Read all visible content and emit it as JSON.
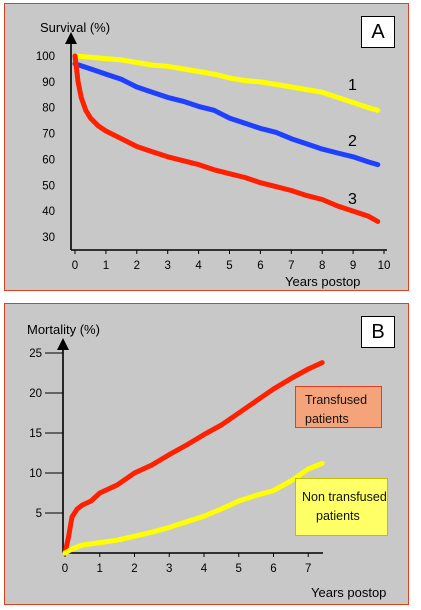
{
  "chart_data": [
    {
      "type": "line",
      "panel_label": "A",
      "ylabel": "Survival (%)",
      "xlabel": "Years postop",
      "xlim": [
        0,
        10
      ],
      "ylim": [
        30,
        100
      ],
      "x_ticks": [
        "0",
        "1",
        "2",
        "3",
        "4",
        "5",
        "6",
        "7",
        "8",
        "9",
        "10"
      ],
      "y_ticks": [
        "30",
        "40",
        "50",
        "60",
        "70",
        "80",
        "90",
        "100"
      ],
      "series": [
        {
          "name": "1",
          "color": "#ffff00",
          "x": [
            0,
            0.5,
            1,
            1.5,
            2,
            2.5,
            3,
            3.5,
            4,
            4.5,
            5,
            5.5,
            6,
            6.5,
            7,
            7.5,
            8,
            8.5,
            9,
            9.5,
            9.8
          ],
          "y": [
            100,
            99.5,
            99,
            98.5,
            97.5,
            96.5,
            96,
            95,
            94,
            93,
            91.5,
            90.5,
            90,
            89,
            88,
            87,
            86,
            84,
            82,
            80,
            79
          ]
        },
        {
          "name": "2",
          "color": "#2040ff",
          "x": [
            0,
            0.5,
            1,
            1.5,
            2,
            2.5,
            3,
            3.5,
            4,
            4.5,
            5,
            5.5,
            6,
            6.5,
            7,
            7.5,
            8,
            8.5,
            9,
            9.5,
            9.8
          ],
          "y": [
            97,
            95,
            93,
            91,
            88,
            86,
            84,
            82.5,
            80.5,
            79,
            76,
            74,
            72,
            70.5,
            68,
            66,
            64,
            62.5,
            61,
            59,
            58
          ]
        },
        {
          "name": "3",
          "color": "#ff2000",
          "x": [
            0,
            0.1,
            0.2,
            0.35,
            0.5,
            0.75,
            1,
            1.5,
            2,
            2.5,
            3,
            3.5,
            4,
            4.5,
            5,
            5.5,
            6,
            6.5,
            7,
            7.5,
            8,
            8.5,
            9,
            9.5,
            9.8
          ],
          "y": [
            100,
            90,
            84,
            79,
            76,
            73,
            71,
            68,
            65,
            63,
            61,
            59.5,
            58,
            56,
            54.5,
            53,
            51,
            49.5,
            48,
            46,
            44.5,
            42,
            40,
            38,
            36
          ]
        }
      ]
    },
    {
      "type": "line",
      "panel_label": "B",
      "ylabel": "Mortality (%)",
      "xlabel": "Years postop",
      "xlim": [
        0,
        8
      ],
      "ylim": [
        0,
        25
      ],
      "x_ticks": [
        "0",
        "1",
        "2",
        "3",
        "4",
        "5",
        "6",
        "7"
      ],
      "y_ticks": [
        "5",
        "10",
        "15",
        "20",
        "25"
      ],
      "series": [
        {
          "name": "Transfused patients",
          "color": "#ff2000",
          "x": [
            0,
            0.1,
            0.2,
            0.35,
            0.5,
            0.75,
            1,
            1.5,
            2,
            2.5,
            3,
            3.5,
            4,
            4.5,
            5,
            5.5,
            6,
            6.5,
            7,
            7.4
          ],
          "y": [
            0,
            2,
            4.5,
            5.5,
            6,
            6.5,
            7.5,
            8.5,
            10,
            11,
            12.3,
            13.5,
            14.8,
            16,
            17.5,
            19,
            20.5,
            21.8,
            23,
            23.8
          ]
        },
        {
          "name": "Non transfused patients",
          "color": "#ffff00",
          "x": [
            0,
            0.2,
            0.5,
            1,
            1.5,
            2,
            2.5,
            3,
            3.5,
            4,
            4.5,
            5,
            5.5,
            6,
            6.5,
            7,
            7.4
          ],
          "y": [
            0,
            0.5,
            1,
            1.3,
            1.6,
            2.1,
            2.6,
            3.2,
            3.9,
            4.6,
            5.5,
            6.5,
            7.2,
            7.8,
            9,
            10.5,
            11.2
          ]
        }
      ]
    }
  ],
  "annotations": {
    "curve1": "1",
    "curve2": "2",
    "curve3": "3",
    "transfused_line1": "Transfused",
    "transfused_line2": "patients",
    "nontransfused_line1": "Non transfused",
    "nontransfused_line2": "patients"
  },
  "colors": {
    "panel_bg": "#c8c8c8",
    "panel_border": "#e04020",
    "transfused_box": "#f4a37a",
    "nontransfused_box": "#ffff66"
  }
}
